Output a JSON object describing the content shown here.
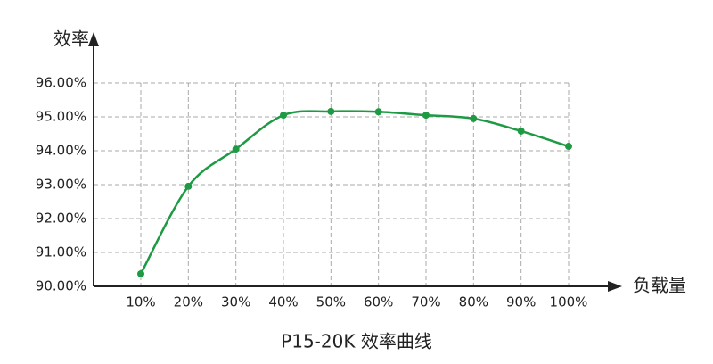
{
  "chart_data": {
    "type": "line",
    "title": "P15-20K 效率曲线",
    "y_label": "效率",
    "x_label": "负载量",
    "categories": [
      "10%",
      "20%",
      "30%",
      "40%",
      "50%",
      "60%",
      "70%",
      "80%",
      "90%",
      "100%"
    ],
    "series": [
      {
        "name": "效率",
        "color": "#1e9a44",
        "values": [
          90.37,
          92.95,
          94.05,
          95.05,
          95.16,
          95.15,
          95.05,
          94.95,
          94.58,
          94.13
        ]
      }
    ],
    "ylim": [
      90,
      96
    ],
    "yticks": [
      {
        "value": 90,
        "label": "90.00%"
      },
      {
        "value": 91,
        "label": "91.00%"
      },
      {
        "value": 92,
        "label": "92.00%"
      },
      {
        "value": 93,
        "label": "93.00%"
      },
      {
        "value": 94,
        "label": "94.00%"
      },
      {
        "value": 95,
        "label": "95.00%"
      },
      {
        "value": 96,
        "label": "96.00%"
      }
    ],
    "grid": true
  }
}
